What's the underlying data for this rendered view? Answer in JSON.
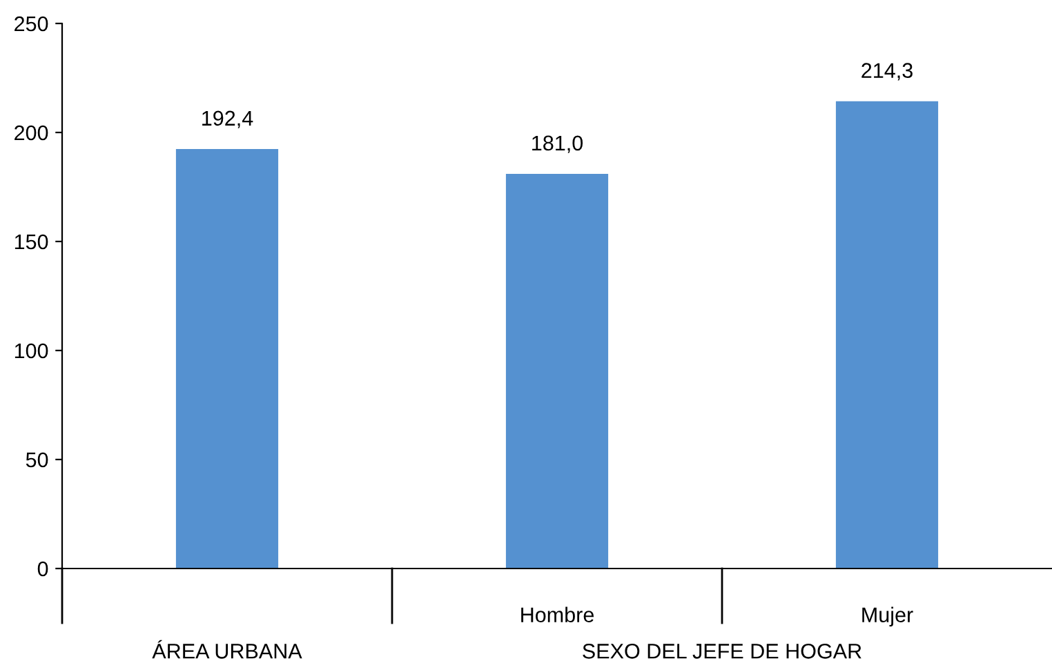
{
  "chart_data": {
    "type": "bar",
    "categories": [
      null,
      "Hombre",
      "Mujer"
    ],
    "series": [
      {
        "color": "#5591d0",
        "values": [
          192.4,
          181.0,
          214.3
        ],
        "value_labels": [
          "192,4",
          "181,0",
          "214,3"
        ]
      }
    ],
    "ylim": [
      0,
      250
    ],
    "yticks": [
      0,
      50,
      100,
      150,
      200,
      250
    ],
    "grid": false,
    "legend": false,
    "annotations": [
      "ÁREA URBANA",
      "SEXO DEL JEFE DE HOGAR"
    ]
  }
}
